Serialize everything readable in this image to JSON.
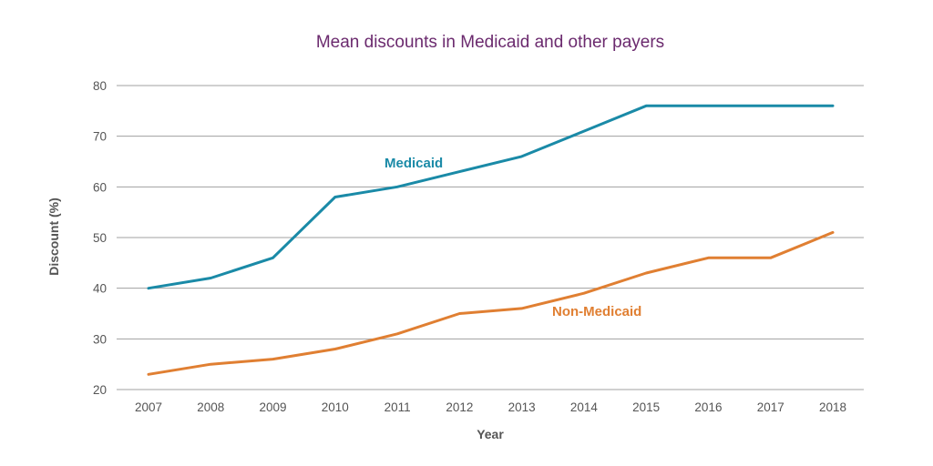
{
  "chart_data": {
    "type": "line",
    "title": "Mean discounts in Medicaid and other payers",
    "xlabel": "Year",
    "ylabel": "Discount (%)",
    "x": [
      "2007",
      "2008",
      "2009",
      "2010",
      "2011",
      "2012",
      "2013",
      "2014",
      "2015",
      "2016",
      "2017",
      "2018"
    ],
    "ylim": [
      20,
      80
    ],
    "yticks": [
      20,
      30,
      40,
      50,
      60,
      70,
      80
    ],
    "grid": true,
    "legend": "inline labels",
    "series": [
      {
        "name": "Medicaid",
        "color": "#1a8aa7",
        "values": [
          40,
          42,
          46,
          58,
          60,
          63,
          66,
          71,
          76,
          76,
          76,
          76
        ]
      },
      {
        "name": "Non-Medicaid",
        "color": "#e07f32",
        "values": [
          23,
          25,
          26,
          28,
          31,
          35,
          36,
          39,
          43,
          46,
          46,
          51
        ]
      }
    ],
    "colors": {
      "title": "#6b2a6e",
      "axis_text": "#555555",
      "grid": "#a0a0a0"
    }
  }
}
